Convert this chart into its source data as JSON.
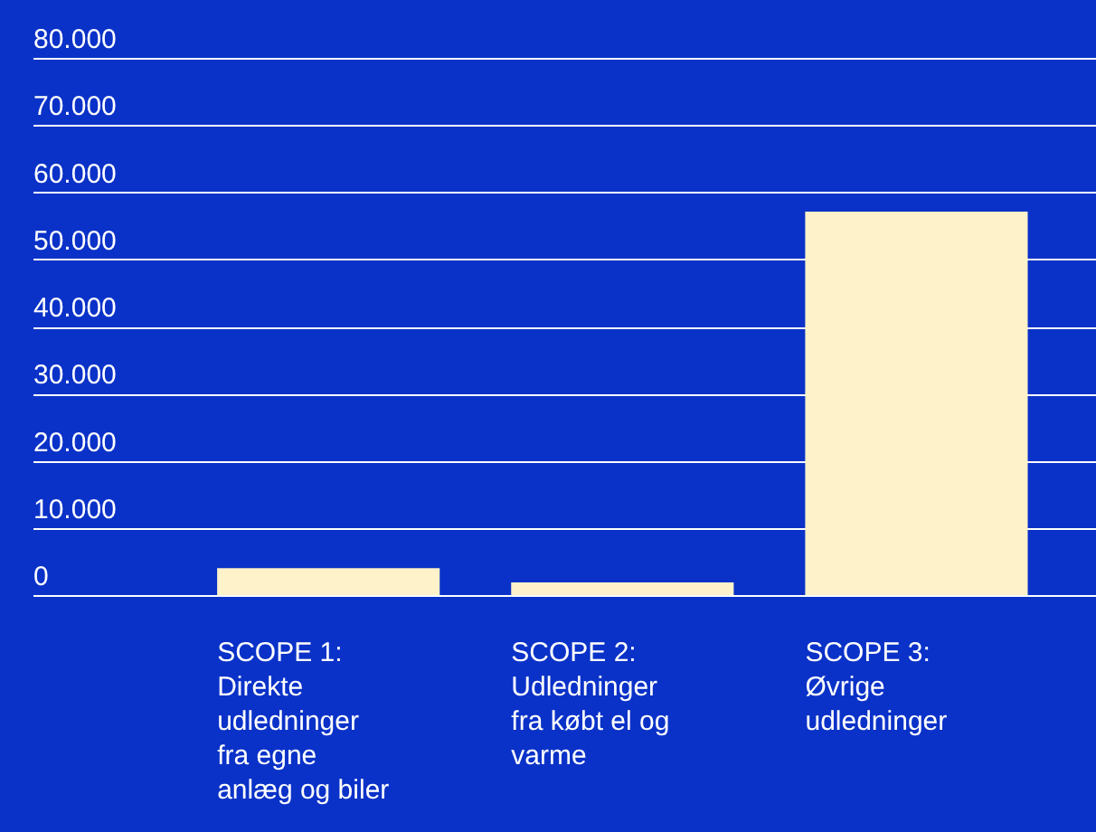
{
  "chart_data": {
    "type": "bar",
    "categories": [
      "SCOPE 1:\nDirekte\nudledninger\nfra egne\nanlæg og biler",
      "SCOPE 2:\nUdledninger\nfra købt el og\nvarme",
      "SCOPE 3:\nØvrige\nudledninger"
    ],
    "values": [
      4000,
      1900,
      57100
    ],
    "color": "#fdf2c9",
    "ylim": [
      0,
      80000
    ],
    "yticks": [
      {
        "value": 0,
        "label": "0"
      },
      {
        "value": 10000,
        "label": "10.000"
      },
      {
        "value": 20000,
        "label": "20.000"
      },
      {
        "value": 30000,
        "label": "30.000"
      },
      {
        "value": 40000,
        "label": "40.000"
      },
      {
        "value": 50000,
        "label": "50.000"
      },
      {
        "value": 60000,
        "label": "60.000"
      },
      {
        "value": 70000,
        "label": "70.000"
      },
      {
        "value": 80000,
        "label": "80.000"
      }
    ],
    "grid": "y"
  }
}
